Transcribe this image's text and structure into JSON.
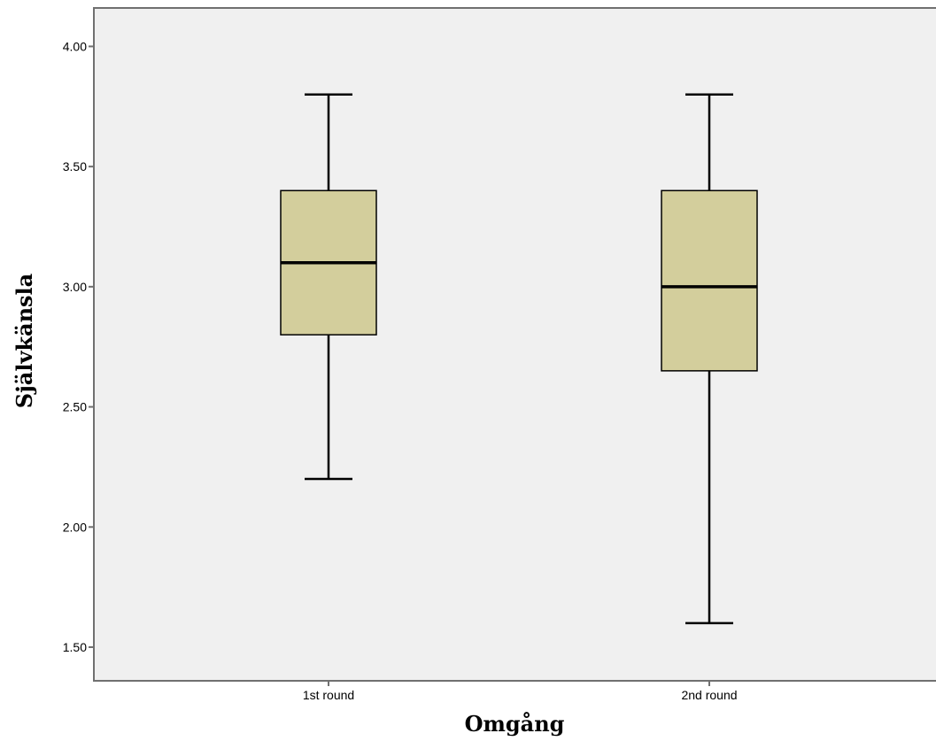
{
  "chart_data": {
    "type": "boxplot",
    "title": "",
    "xlabel": "Omgång",
    "ylabel": "Självkänsla",
    "ylim": [
      1.36,
      4.16
    ],
    "yticks": [
      {
        "value": 4.0,
        "label": "4.00"
      },
      {
        "value": 3.5,
        "label": "3.50"
      },
      {
        "value": 3.0,
        "label": "3.00"
      },
      {
        "value": 2.5,
        "label": "2.50"
      },
      {
        "value": 2.0,
        "label": "2.00"
      },
      {
        "value": 1.5,
        "label": "1.50"
      }
    ],
    "categories": [
      "1st round",
      "2nd round"
    ],
    "boxes": [
      {
        "category": "1st round",
        "whisker_low": 2.2,
        "q1": 2.8,
        "median": 3.1,
        "q3": 3.4,
        "whisker_high": 3.8
      },
      {
        "category": "2nd round",
        "whisker_low": 1.6,
        "q1": 2.65,
        "median": 3.0,
        "q3": 3.4,
        "whisker_high": 3.8
      }
    ],
    "grid": false,
    "colors": {
      "plot_background": "#f0f0f0",
      "box_fill": "#d3ce9c",
      "box_stroke": "#000000",
      "frame": "#707070"
    }
  }
}
